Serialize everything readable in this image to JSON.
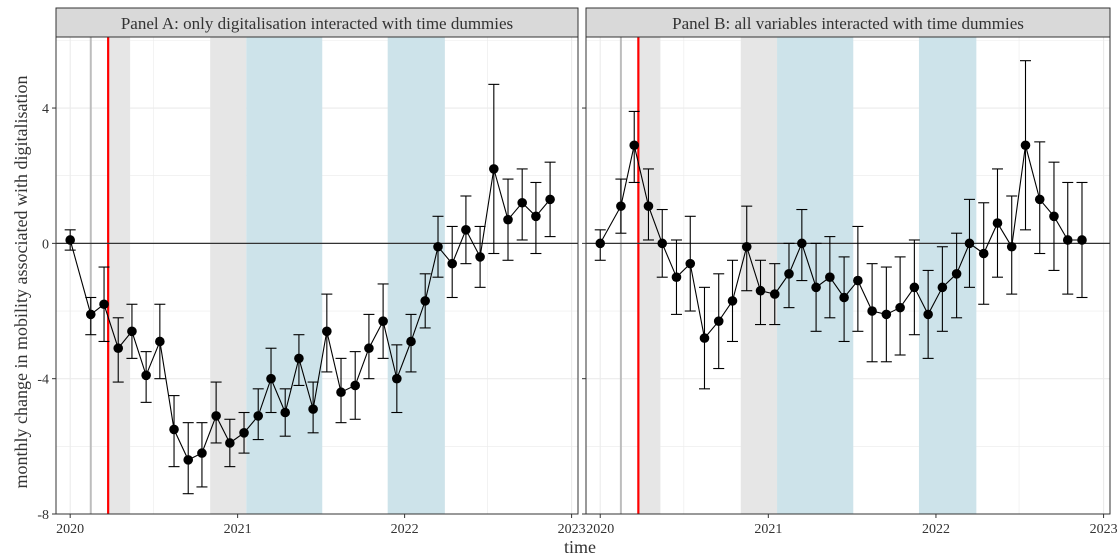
{
  "figure": {
    "ylabel": "monthly change in mobility associated with digitalisation",
    "xlabel": "time"
  },
  "colors": {
    "shade_gray": "#e6e6e6",
    "shade_blue": "#cde3ea",
    "marker": "#000000",
    "zero_line": "#333333",
    "red_line": "#ff0000",
    "gray_line": "#bdbdbd",
    "strip_fill": "#d9d9d9",
    "grid": "#ebebeb"
  },
  "chart_data": [
    {
      "type": "scatter",
      "title": "Panel A: only digitalisation interacted with time dummies",
      "xlabel": "time",
      "ylabel": "monthly change in mobility associated with digitalisation",
      "x_ticks": [
        "2020",
        "2021",
        "2022",
        "2023"
      ],
      "y_ticks": [
        "-8",
        "-4",
        "0",
        "4"
      ],
      "xlim": [
        "2019-12-01",
        "2023-01-15"
      ],
      "ylim": [
        -8,
        6.1
      ],
      "grid": true,
      "hline": 0,
      "vlines": [
        {
          "date": "2020-02-15",
          "color": "gray"
        },
        {
          "date": "2020-03-24",
          "color": "red"
        }
      ],
      "shaded_regions": [
        {
          "from": "2020-03-24",
          "to": "2020-05-11",
          "color": "gray"
        },
        {
          "from": "2020-11-02",
          "to": "2021-01-20",
          "color": "gray"
        },
        {
          "from": "2021-01-20",
          "to": "2021-07-05",
          "color": "blue"
        },
        {
          "from": "2021-11-25",
          "to": "2022-03-30",
          "color": "blue"
        }
      ],
      "points": [
        {
          "date": "2020-01-01",
          "y": 0.1,
          "lo": -0.2,
          "hi": 0.4
        },
        {
          "date": "2020-02-15",
          "y": -2.1,
          "lo": -2.7,
          "hi": -1.6
        },
        {
          "date": "2020-03-15",
          "y": -1.8,
          "lo": -2.9,
          "hi": -0.7
        },
        {
          "date": "2020-04-15",
          "y": -3.1,
          "lo": -4.1,
          "hi": -2.2
        },
        {
          "date": "2020-05-15",
          "y": -2.6,
          "lo": -3.4,
          "hi": -1.8
        },
        {
          "date": "2020-06-15",
          "y": -3.9,
          "lo": -4.7,
          "hi": -3.2
        },
        {
          "date": "2020-07-15",
          "y": -2.9,
          "lo": -4.0,
          "hi": -1.8
        },
        {
          "date": "2020-08-15",
          "y": -5.5,
          "lo": -6.6,
          "hi": -4.5
        },
        {
          "date": "2020-09-15",
          "y": -6.4,
          "lo": -7.4,
          "hi": -5.3
        },
        {
          "date": "2020-10-15",
          "y": -6.2,
          "lo": -7.2,
          "hi": -5.3
        },
        {
          "date": "2020-11-15",
          "y": -5.1,
          "lo": -5.9,
          "hi": -4.1
        },
        {
          "date": "2020-12-15",
          "y": -5.9,
          "lo": -6.6,
          "hi": -5.2
        },
        {
          "date": "2021-01-15",
          "y": -5.6,
          "lo": -6.2,
          "hi": -5.0
        },
        {
          "date": "2021-02-15",
          "y": -5.1,
          "lo": -5.8,
          "hi": -4.3
        },
        {
          "date": "2021-03-15",
          "y": -4.0,
          "lo": -5.0,
          "hi": -3.1
        },
        {
          "date": "2021-04-15",
          "y": -5.0,
          "lo": -5.7,
          "hi": -4.3
        },
        {
          "date": "2021-05-15",
          "y": -3.4,
          "lo": -4.2,
          "hi": -2.7
        },
        {
          "date": "2021-06-15",
          "y": -4.9,
          "lo": -5.6,
          "hi": -4.1
        },
        {
          "date": "2021-07-15",
          "y": -2.6,
          "lo": -3.8,
          "hi": -1.5
        },
        {
          "date": "2021-08-15",
          "y": -4.4,
          "lo": -5.3,
          "hi": -3.4
        },
        {
          "date": "2021-09-15",
          "y": -4.2,
          "lo": -5.2,
          "hi": -3.2
        },
        {
          "date": "2021-10-15",
          "y": -3.1,
          "lo": -4.0,
          "hi": -2.1
        },
        {
          "date": "2021-11-15",
          "y": -2.3,
          "lo": -3.4,
          "hi": -1.2
        },
        {
          "date": "2021-12-15",
          "y": -4.0,
          "lo": -5.0,
          "hi": -3.0
        },
        {
          "date": "2022-01-15",
          "y": -2.9,
          "lo": -3.8,
          "hi": -2.1
        },
        {
          "date": "2022-02-15",
          "y": -1.7,
          "lo": -2.5,
          "hi": -0.9
        },
        {
          "date": "2022-03-15",
          "y": -0.1,
          "lo": -1.0,
          "hi": 0.8
        },
        {
          "date": "2022-04-15",
          "y": -0.6,
          "lo": -1.6,
          "hi": 0.5
        },
        {
          "date": "2022-05-15",
          "y": 0.4,
          "lo": -0.6,
          "hi": 1.4
        },
        {
          "date": "2022-06-15",
          "y": -0.4,
          "lo": -1.3,
          "hi": 0.5
        },
        {
          "date": "2022-07-15",
          "y": 2.2,
          "lo": -0.3,
          "hi": 4.7
        },
        {
          "date": "2022-08-15",
          "y": 0.7,
          "lo": -0.5,
          "hi": 1.9
        },
        {
          "date": "2022-09-15",
          "y": 1.2,
          "lo": 0.1,
          "hi": 2.2
        },
        {
          "date": "2022-10-15",
          "y": 0.8,
          "lo": -0.3,
          "hi": 1.8
        },
        {
          "date": "2022-11-15",
          "y": 1.3,
          "lo": 0.2,
          "hi": 2.4
        }
      ]
    },
    {
      "type": "scatter",
      "title": "Panel B: all variables interacted with time dummies",
      "xlabel": "time",
      "ylabel": "monthly change in mobility associated with digitalisation",
      "x_ticks": [
        "2020",
        "2021",
        "2022",
        "2023"
      ],
      "y_ticks": [
        "-8",
        "-4",
        "0",
        "4"
      ],
      "xlim": [
        "2019-12-01",
        "2023-01-15"
      ],
      "ylim": [
        -8,
        6.1
      ],
      "grid": true,
      "hline": 0,
      "vlines": [
        {
          "date": "2020-02-15",
          "color": "gray"
        },
        {
          "date": "2020-03-24",
          "color": "red"
        }
      ],
      "shaded_regions": [
        {
          "from": "2020-03-24",
          "to": "2020-05-11",
          "color": "gray"
        },
        {
          "from": "2020-11-02",
          "to": "2021-01-20",
          "color": "gray"
        },
        {
          "from": "2021-01-20",
          "to": "2021-07-05",
          "color": "blue"
        },
        {
          "from": "2021-11-25",
          "to": "2022-03-30",
          "color": "blue"
        }
      ],
      "points": [
        {
          "date": "2020-01-01",
          "y": 0.0,
          "lo": -0.5,
          "hi": 0.4
        },
        {
          "date": "2020-02-15",
          "y": 1.1,
          "lo": 0.3,
          "hi": 1.9
        },
        {
          "date": "2020-03-15",
          "y": 2.9,
          "lo": 1.8,
          "hi": 3.9
        },
        {
          "date": "2020-04-15",
          "y": 1.1,
          "lo": 0.1,
          "hi": 2.2
        },
        {
          "date": "2020-05-15",
          "y": 0.0,
          "lo": -1.0,
          "hi": 1.0
        },
        {
          "date": "2020-06-15",
          "y": -1.0,
          "lo": -2.1,
          "hi": 0.1
        },
        {
          "date": "2020-07-15",
          "y": -0.6,
          "lo": -2.0,
          "hi": 0.8
        },
        {
          "date": "2020-08-15",
          "y": -2.8,
          "lo": -4.3,
          "hi": -1.3
        },
        {
          "date": "2020-09-15",
          "y": -2.3,
          "lo": -3.7,
          "hi": -0.9
        },
        {
          "date": "2020-10-15",
          "y": -1.7,
          "lo": -2.9,
          "hi": -0.5
        },
        {
          "date": "2020-11-15",
          "y": -0.1,
          "lo": -1.4,
          "hi": 1.1
        },
        {
          "date": "2020-12-15",
          "y": -1.4,
          "lo": -2.4,
          "hi": -0.5
        },
        {
          "date": "2021-01-15",
          "y": -1.5,
          "lo": -2.4,
          "hi": -0.6
        },
        {
          "date": "2021-02-15",
          "y": -0.9,
          "lo": -1.9,
          "hi": 0.0
        },
        {
          "date": "2021-03-15",
          "y": 0.0,
          "lo": -1.1,
          "hi": 1.0
        },
        {
          "date": "2021-04-15",
          "y": -1.3,
          "lo": -2.6,
          "hi": 0.0
        },
        {
          "date": "2021-05-15",
          "y": -1.0,
          "lo": -2.2,
          "hi": 0.2
        },
        {
          "date": "2021-06-15",
          "y": -1.6,
          "lo": -2.9,
          "hi": -0.4
        },
        {
          "date": "2021-07-15",
          "y": -1.1,
          "lo": -2.6,
          "hi": 0.5
        },
        {
          "date": "2021-08-15",
          "y": -2.0,
          "lo": -3.5,
          "hi": -0.6
        },
        {
          "date": "2021-09-15",
          "y": -2.1,
          "lo": -3.5,
          "hi": -0.7
        },
        {
          "date": "2021-10-15",
          "y": -1.9,
          "lo": -3.3,
          "hi": -0.4
        },
        {
          "date": "2021-11-15",
          "y": -1.3,
          "lo": -2.7,
          "hi": 0.1
        },
        {
          "date": "2021-12-15",
          "y": -2.1,
          "lo": -3.4,
          "hi": -0.8
        },
        {
          "date": "2022-01-15",
          "y": -1.3,
          "lo": -2.6,
          "hi": -0.1
        },
        {
          "date": "2022-02-15",
          "y": -0.9,
          "lo": -2.2,
          "hi": 0.3
        },
        {
          "date": "2022-03-15",
          "y": 0.0,
          "lo": -1.3,
          "hi": 1.3
        },
        {
          "date": "2022-04-15",
          "y": -0.3,
          "lo": -1.8,
          "hi": 1.2
        },
        {
          "date": "2022-05-15",
          "y": 0.6,
          "lo": -1.0,
          "hi": 2.2
        },
        {
          "date": "2022-06-15",
          "y": -0.1,
          "lo": -1.5,
          "hi": 1.4
        },
        {
          "date": "2022-07-15",
          "y": 2.9,
          "lo": 0.4,
          "hi": 5.4
        },
        {
          "date": "2022-08-15",
          "y": 1.3,
          "lo": -0.3,
          "hi": 3.0
        },
        {
          "date": "2022-09-15",
          "y": 0.8,
          "lo": -0.8,
          "hi": 2.4
        },
        {
          "date": "2022-10-15",
          "y": 0.1,
          "lo": -1.5,
          "hi": 1.8
        },
        {
          "date": "2022-11-15",
          "y": 0.1,
          "lo": -1.6,
          "hi": 1.8
        }
      ]
    }
  ]
}
